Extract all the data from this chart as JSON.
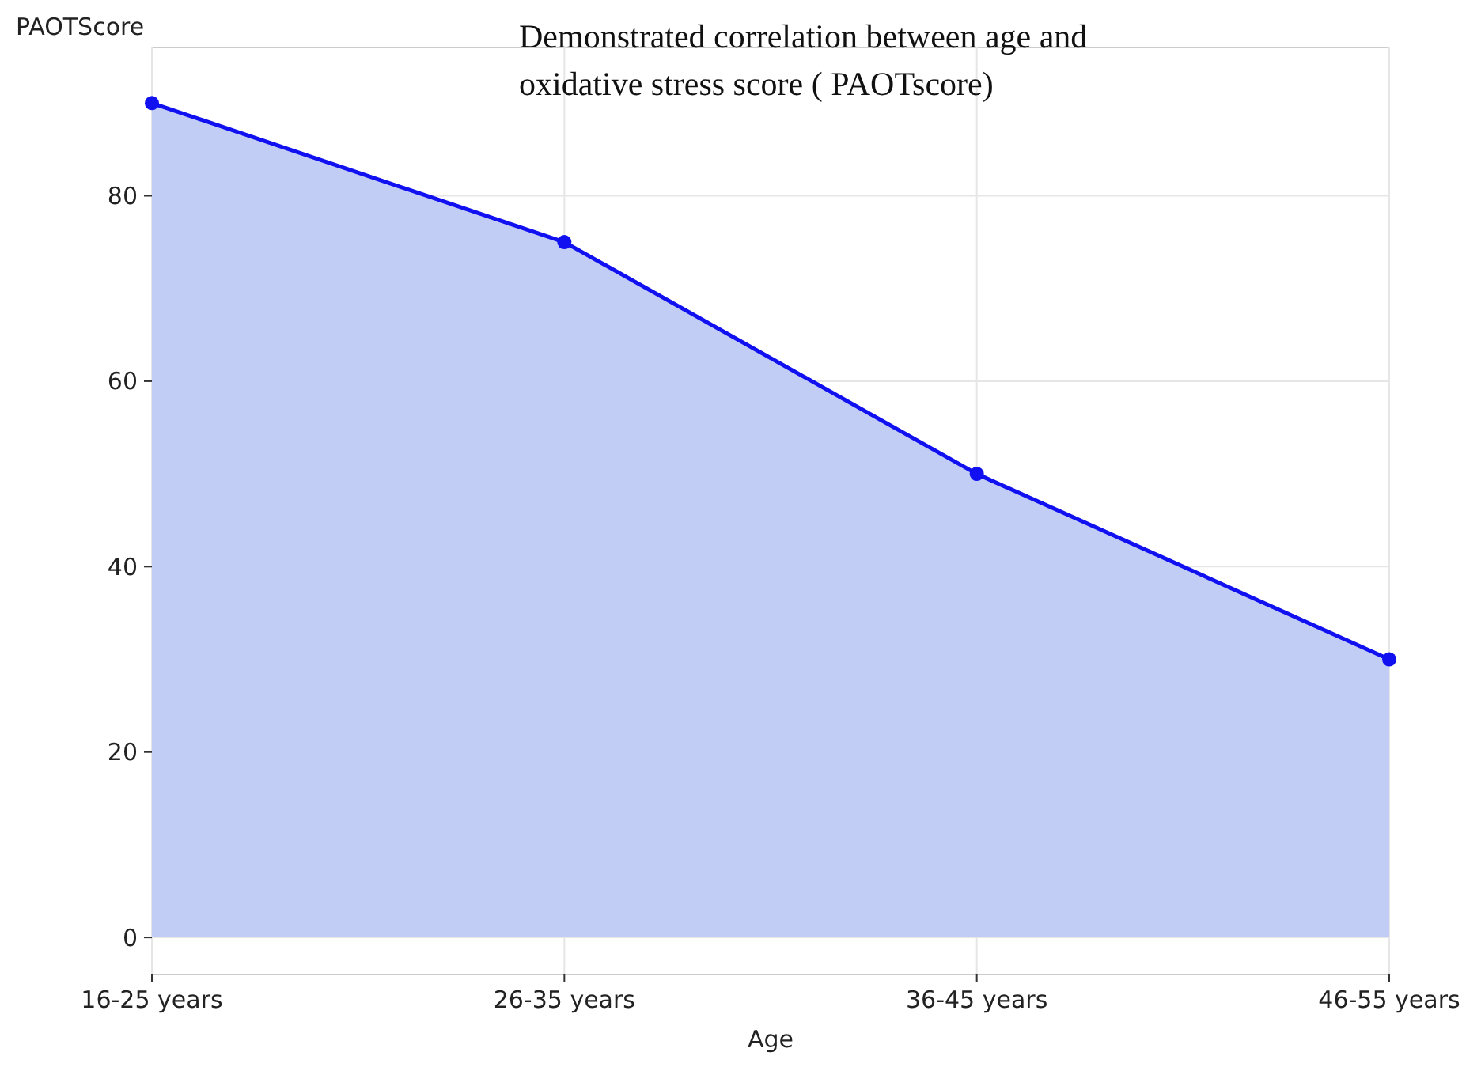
{
  "chart_data": {
    "type": "area",
    "title": "Demonstrated correlation between age and oxidative stress score ( PAOTscore)",
    "xlabel": "Age",
    "ylabel": "PAOTScore",
    "categories": [
      "16-25 years",
      "26-35 years",
      "36-45 years",
      "46-55 years"
    ],
    "series": [
      {
        "color": "#1010f0",
        "values": [
          90,
          75,
          50,
          30
        ]
      }
    ],
    "ylim": [
      -4,
      96
    ],
    "yticks": [
      0,
      20,
      40,
      60,
      80
    ],
    "grid": true,
    "marker": "circle",
    "line_style": "solid"
  }
}
